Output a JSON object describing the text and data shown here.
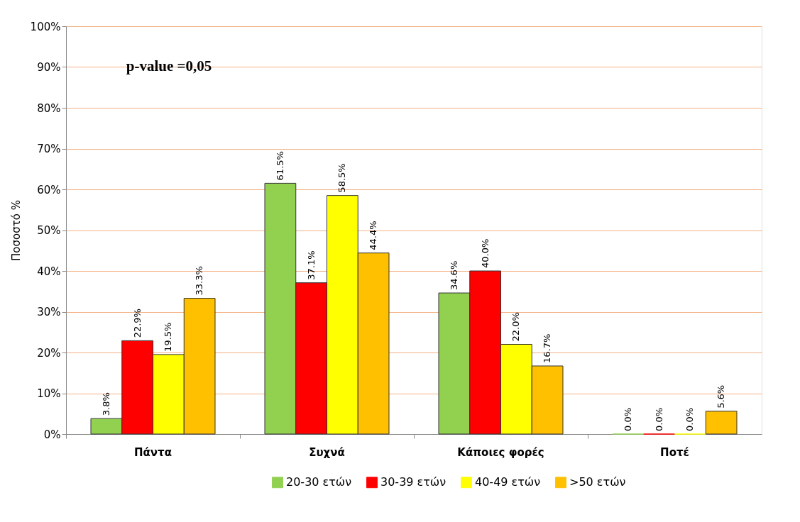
{
  "chart_data": {
    "type": "bar",
    "ylabel": "Ποσοστό %",
    "categories": [
      "Πάντα",
      "Συχνά",
      "Κάποιες φορές",
      "Ποτέ"
    ],
    "series": [
      {
        "name": "20-30 ετών",
        "color": "#92d050",
        "values": [
          3.8,
          61.5,
          34.6,
          0.0
        ],
        "value_labels": [
          "3.8%",
          "61.5%",
          "34.6%",
          "0.0%"
        ]
      },
      {
        "name": "30-39 ετών",
        "color": "#ff0000",
        "values": [
          22.9,
          37.1,
          40.0,
          0.0
        ],
        "value_labels": [
          "22.9%",
          "37.1%",
          "40.0%",
          "0.0%"
        ]
      },
      {
        "name": "40-49 ετών",
        "color": "#ffff00",
        "values": [
          19.5,
          58.5,
          22.0,
          0.0
        ],
        "value_labels": [
          "19.5%",
          "58.5%",
          "22.0%",
          "0.0%"
        ]
      },
      {
        "name": ">50 ετών",
        "color": "#ffc000",
        "values": [
          33.3,
          44.4,
          16.7,
          5.6
        ],
        "value_labels": [
          "33.3%",
          "44.4%",
          "16.7%",
          "5.6%"
        ]
      }
    ],
    "ylim": [
      0,
      100
    ],
    "yticks": [
      {
        "value": 0,
        "label": "0%"
      },
      {
        "value": 10,
        "label": "10%"
      },
      {
        "value": 20,
        "label": "20%"
      },
      {
        "value": 30,
        "label": "30%"
      },
      {
        "value": 40,
        "label": "40%"
      },
      {
        "value": 50,
        "label": "50%"
      },
      {
        "value": 60,
        "label": "60%"
      },
      {
        "value": 70,
        "label": "70%"
      },
      {
        "value": 80,
        "label": "80%"
      },
      {
        "value": 90,
        "label": "90%"
      },
      {
        "value": 100,
        "label": "100%"
      }
    ],
    "annotations": [
      "p-value =0,05"
    ],
    "grid": "y",
    "legend": "bottom"
  }
}
